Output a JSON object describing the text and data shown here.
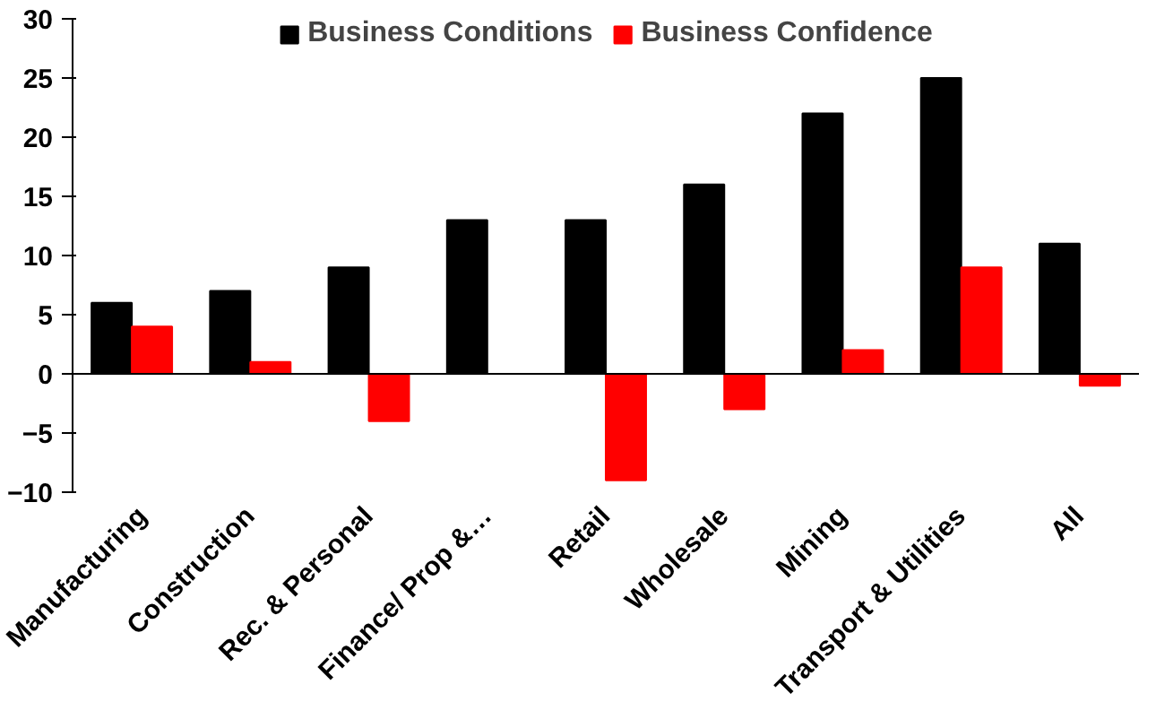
{
  "chart_data": {
    "type": "bar",
    "categories": [
      "Manufacturing",
      "Construction",
      "Rec. & Personal",
      "Finance/ Prop &…",
      "Retail",
      "Wholesale",
      "Mining",
      "Transport & Utilities",
      "All"
    ],
    "series": [
      {
        "name": "Business Conditions",
        "color": "#000000",
        "values": [
          6,
          7,
          9,
          13,
          13,
          16,
          22,
          25,
          11
        ]
      },
      {
        "name": "Business Confidence",
        "color": "#ff0000",
        "values": [
          4,
          1,
          -4,
          null,
          -9,
          -3,
          2,
          9,
          -1
        ]
      }
    ],
    "ylim": [
      -10,
      30
    ],
    "yticks": [
      -10,
      -5,
      0,
      5,
      10,
      15,
      20,
      25,
      30
    ],
    "grid": false,
    "legend": "top",
    "ref_lines": [
      {
        "axis": "y",
        "value": 0,
        "color": "#000000"
      }
    ]
  }
}
